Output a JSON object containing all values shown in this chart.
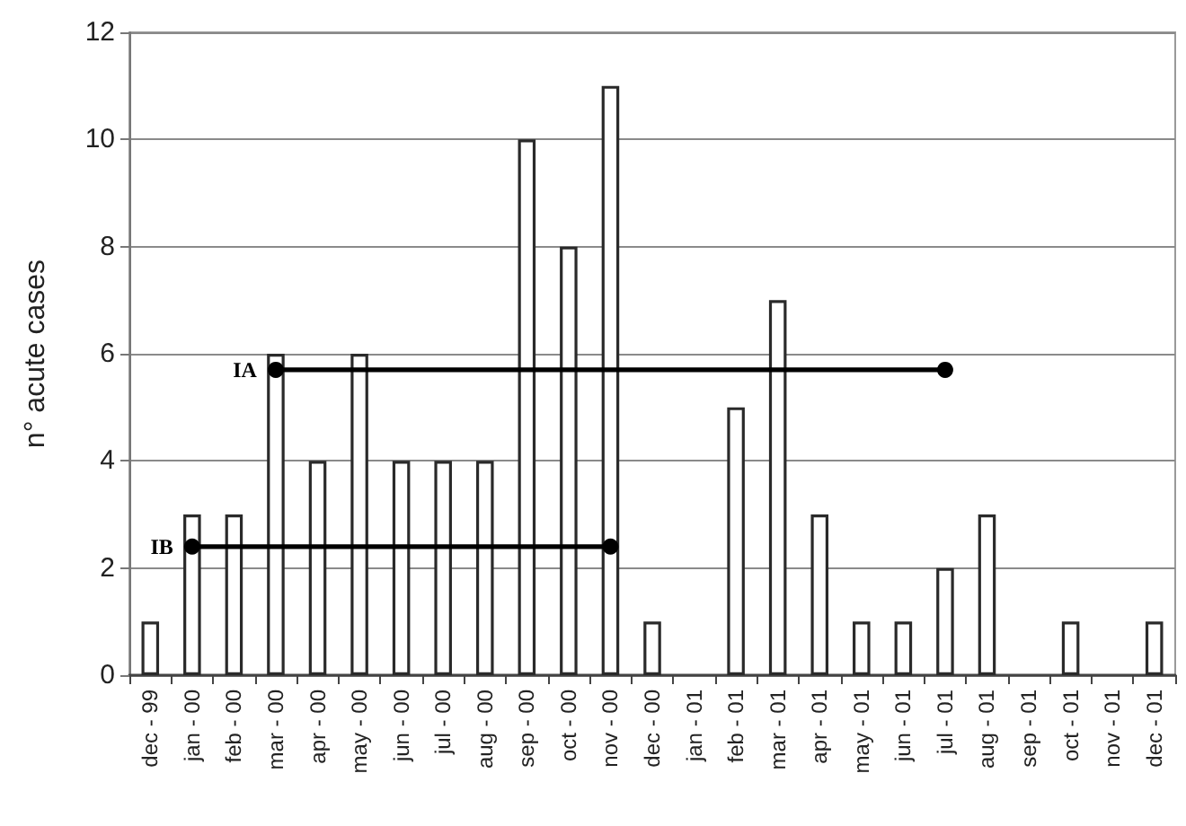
{
  "chart_data": {
    "type": "bar",
    "ylabel": "n° acute cases",
    "categories": [
      "dec - 99",
      "jan - 00",
      "feb - 00",
      "mar - 00",
      "apr - 00",
      "may - 00",
      "jun - 00",
      "jul - 00",
      "aug - 00",
      "sep - 00",
      "oct - 00",
      "nov - 00",
      "dec - 00",
      "jan - 01",
      "feb - 01",
      "mar - 01",
      "apr - 01",
      "may - 01",
      "jun - 01",
      "jul - 01",
      "aug - 01",
      "sep - 01",
      "oct - 01",
      "nov - 01",
      "dec - 01"
    ],
    "series": [
      {
        "color": "#ffffff",
        "values": [
          1,
          3,
          3,
          6,
          4,
          6,
          4,
          4,
          4,
          10,
          8,
          11,
          1,
          0,
          5,
          7,
          3,
          1,
          1,
          2,
          3,
          0,
          1,
          0,
          1
        ]
      },
      {
        "type": "line",
        "name": "IA",
        "color": "#000000",
        "x": [
          "mar - 00",
          "jul - 01"
        ],
        "values": [
          5.7,
          5.7
        ]
      },
      {
        "type": "line",
        "name": "IB",
        "color": "#000000",
        "x": [
          "jan - 00",
          "nov - 00"
        ],
        "values": [
          2.4,
          2.4
        ]
      }
    ],
    "ylim": [
      0,
      12
    ],
    "yticks": [
      0,
      2,
      4,
      6,
      8,
      10,
      12
    ],
    "grid": "y",
    "marker": "circle",
    "line_style": "solid"
  }
}
